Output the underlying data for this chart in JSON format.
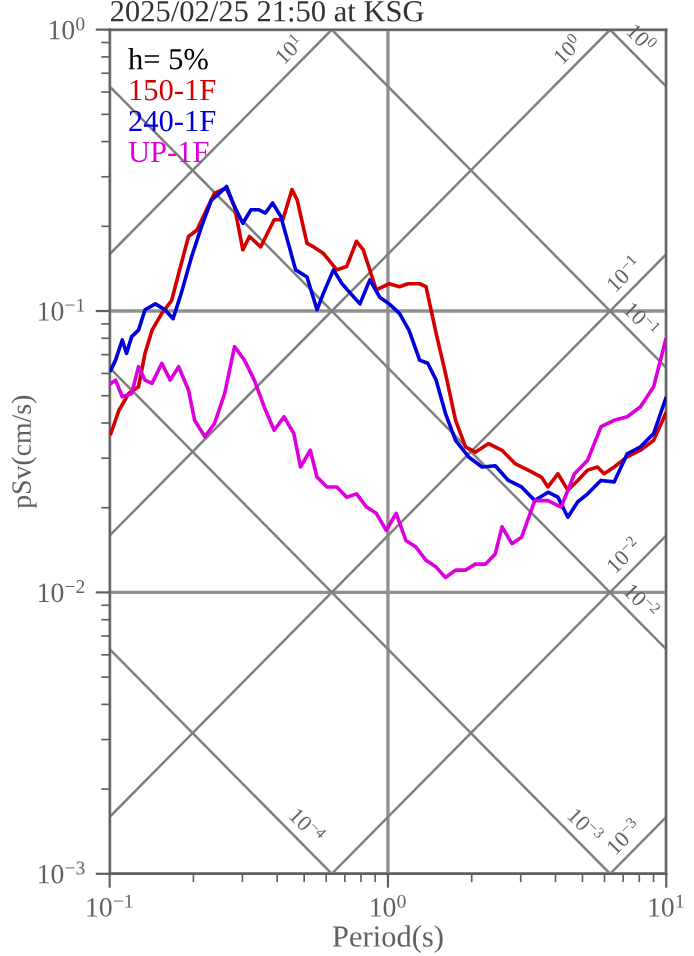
{
  "chart_data": {
    "type": "line",
    "title": "2025/02/25 21:50 at KSG",
    "xlabel": "Period(s)",
    "ylabel": "pSv(cm/s)",
    "legend_title": "h= 5%",
    "legend": "top left",
    "log": "xy",
    "grid": true,
    "xlim": [
      0.1,
      10
    ],
    "ylim": [
      0.001,
      1
    ],
    "xticks": [
      {
        "value": 0.1,
        "label": "10$^{−1}$"
      },
      {
        "value": 1,
        "label": "10$^{0}$"
      },
      {
        "value": 10,
        "label": "10$^{1}$"
      }
    ],
    "yticks": [
      {
        "value": 0.001,
        "label": "10$^{−3}$"
      },
      {
        "value": 0.01,
        "label": "10$^{−2}$"
      },
      {
        "value": 0.1,
        "label": "10$^{−1}$"
      },
      {
        "value": 1,
        "label": "10$^{0}$"
      }
    ],
    "series": [
      {
        "name": "150-1F",
        "color": "#d40000",
        "x": [
          0.101,
          0.108,
          0.117,
          0.127,
          0.134,
          0.142,
          0.154,
          0.167,
          0.177,
          0.192,
          0.206,
          0.22,
          0.238,
          0.262,
          0.281,
          0.301,
          0.318,
          0.349,
          0.39,
          0.419,
          0.452,
          0.472,
          0.512,
          0.541,
          0.587,
          0.655,
          0.711,
          0.771,
          0.815,
          0.908,
          1.01,
          1.1,
          1.18,
          1.3,
          1.37,
          1.49,
          1.61,
          1.75,
          1.9,
          2.06,
          2.3,
          2.57,
          2.86,
          3.19,
          3.56,
          3.76,
          4.08,
          4.43,
          4.81,
          5.22,
          5.66,
          5.98,
          6.5,
          7.24,
          8.08,
          9.01,
          9.95
        ],
        "values": [
          0.0367,
          0.0444,
          0.0509,
          0.0538,
          0.0707,
          0.0855,
          0.0981,
          0.109,
          0.136,
          0.184,
          0.194,
          0.223,
          0.262,
          0.274,
          0.235,
          0.165,
          0.184,
          0.169,
          0.211,
          0.211,
          0.27,
          0.248,
          0.174,
          0.169,
          0.16,
          0.14,
          0.144,
          0.177,
          0.165,
          0.119,
          0.125,
          0.122,
          0.125,
          0.125,
          0.122,
          0.0833,
          0.06,
          0.0409,
          0.0329,
          0.0315,
          0.0338,
          0.032,
          0.0287,
          0.0272,
          0.0257,
          0.0237,
          0.0264,
          0.0231,
          0.025,
          0.0272,
          0.0279,
          0.0264,
          0.0279,
          0.0303,
          0.032,
          0.0347,
          0.0432
        ]
      },
      {
        "name": "240-1F",
        "color": "#0000dd",
        "x": [
          0.101,
          0.105,
          0.111,
          0.115,
          0.12,
          0.127,
          0.134,
          0.146,
          0.158,
          0.169,
          0.181,
          0.197,
          0.214,
          0.232,
          0.248,
          0.263,
          0.281,
          0.301,
          0.322,
          0.344,
          0.363,
          0.385,
          0.412,
          0.435,
          0.466,
          0.512,
          0.556,
          0.587,
          0.637,
          0.684,
          0.731,
          0.793,
          0.861,
          0.934,
          1.01,
          1.1,
          1.19,
          1.3,
          1.39,
          1.49,
          1.61,
          1.75,
          1.95,
          2.18,
          2.43,
          2.71,
          3.02,
          3.37,
          3.76,
          4.08,
          4.43,
          4.81,
          5.22,
          5.82,
          6.5,
          7.24,
          8.08,
          9.01,
          9.95
        ],
        "values": [
          0.0617,
          0.0669,
          0.0789,
          0.0707,
          0.0811,
          0.0855,
          0.101,
          0.106,
          0.101,
          0.0939,
          0.116,
          0.156,
          0.2,
          0.248,
          0.262,
          0.277,
          0.235,
          0.205,
          0.229,
          0.229,
          0.223,
          0.242,
          0.217,
          0.179,
          0.14,
          0.132,
          0.101,
          0.116,
          0.14,
          0.125,
          0.116,
          0.106,
          0.129,
          0.112,
          0.106,
          0.0981,
          0.0855,
          0.0669,
          0.0652,
          0.0568,
          0.0432,
          0.0347,
          0.0303,
          0.0279,
          0.0282,
          0.025,
          0.0237,
          0.0212,
          0.0227,
          0.0218,
          0.0185,
          0.021,
          0.0224,
          0.025,
          0.0247,
          0.0311,
          0.0329,
          0.0367,
          0.0488
        ]
      },
      {
        "name": "UP-1F",
        "color": "#dd00dd",
        "x": [
          0.101,
          0.105,
          0.111,
          0.12,
          0.127,
          0.134,
          0.142,
          0.154,
          0.165,
          0.177,
          0.192,
          0.202,
          0.22,
          0.238,
          0.259,
          0.281,
          0.305,
          0.331,
          0.359,
          0.39,
          0.423,
          0.459,
          0.485,
          0.526,
          0.556,
          0.604,
          0.655,
          0.711,
          0.771,
          0.838,
          0.908,
          0.986,
          1.07,
          1.16,
          1.26,
          1.37,
          1.49,
          1.61,
          1.75,
          1.9,
          2.06,
          2.24,
          2.43,
          2.57,
          2.79,
          3.02,
          3.37,
          3.76,
          4.19,
          4.68,
          5.22,
          5.83,
          6.5,
          7.24,
          8.08,
          9.01,
          9.95
        ],
        "values": [
          0.0553,
          0.0568,
          0.0496,
          0.0509,
          0.0634,
          0.0568,
          0.0553,
          0.0652,
          0.0568,
          0.0634,
          0.0524,
          0.0409,
          0.0357,
          0.0398,
          0.0509,
          0.0747,
          0.0669,
          0.0568,
          0.0457,
          0.0377,
          0.0421,
          0.0367,
          0.0279,
          0.032,
          0.0257,
          0.0237,
          0.0237,
          0.0218,
          0.0224,
          0.0201,
          0.0191,
          0.0166,
          0.0191,
          0.0153,
          0.0145,
          0.013,
          0.0123,
          0.0113,
          0.012,
          0.012,
          0.0126,
          0.0126,
          0.0137,
          0.0171,
          0.0149,
          0.0157,
          0.0212,
          0.0212,
          0.0201,
          0.0264,
          0.0295,
          0.0388,
          0.0409,
          0.0421,
          0.0457,
          0.0538,
          0.0789
        ]
      },
      {
        "name": "10$^{1}$",
        "color": "#808080",
        "x": [
          0.1,
          0.6283
        ],
        "values": [
          0.1592,
          1
        ]
      },
      {
        "name": "10$^{0}$",
        "color": "#808080",
        "x": [
          0.1,
          6.283
        ],
        "values": [
          0.01592,
          1
        ]
      },
      {
        "name": "10$^{−1}$",
        "color": "#808080",
        "x": [
          0.1,
          10
        ],
        "values": [
          0.001592,
          0.1592
        ]
      },
      {
        "name": "10$^{−2}$",
        "color": "#808080",
        "x": [
          0.6283,
          10
        ],
        "values": [
          0.001,
          0.01592
        ]
      },
      {
        "name": "10$^{−3}$",
        "color": "#808080",
        "x": [
          6.283,
          10
        ],
        "values": [
          0.001,
          0.001592
        ]
      },
      {
        "name": "10$^{0}$",
        "color": "#808080",
        "x": [
          6.283,
          10
        ],
        "values": [
          1,
          0.6283
        ]
      },
      {
        "name": "10$^{−1}$",
        "color": "#808080",
        "x": [
          0.6283,
          10
        ],
        "values": [
          1,
          0.06283
        ]
      },
      {
        "name": "10$^{−2}$",
        "color": "#808080",
        "x": [
          0.1,
          10
        ],
        "values": [
          0.6283,
          0.006283
        ]
      },
      {
        "name": "10$^{−3}$",
        "color": "#808080",
        "x": [
          0.1,
          6.283
        ],
        "values": [
          0.06283,
          0.001
        ]
      },
      {
        "name": "10$^{−4}$",
        "color": "#808080",
        "x": [
          0.1,
          0.6283
        ],
        "values": [
          0.006283,
          0.001
        ]
      }
    ]
  }
}
